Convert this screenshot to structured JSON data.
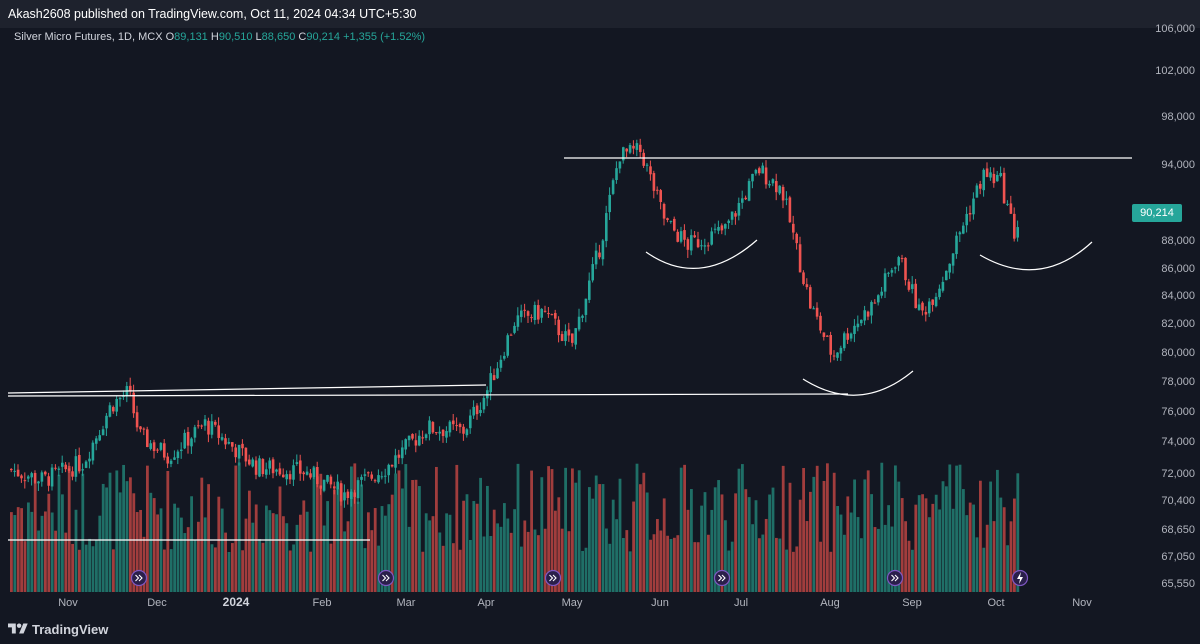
{
  "header": {
    "publisher_text": "Akash2608 published on TradingView.com, Oct 11, 2024 04:34 UTC+5:30"
  },
  "legend": {
    "symbol": "Silver Micro Futures, 1D, MCX",
    "open_label": "O",
    "open": "89,131",
    "high_label": "H",
    "high": "90,510",
    "low_label": "L",
    "low": "88,650",
    "close_label": "C",
    "close": "90,214",
    "change": "+1,355 (+1.52%)"
  },
  "price_badge": "90,214",
  "footer": {
    "brand": "TradingView"
  },
  "colors": {
    "up": "#26a69a",
    "down": "#ef5350",
    "up_volume": "#1f6f67",
    "down_volume": "#a13d3d",
    "background": "#131722",
    "drawing": "#ffffff",
    "event_marker": "#7e57c2"
  },
  "chart_data": {
    "type": "candlestick",
    "instrument": "Silver Micro Futures",
    "interval": "1D",
    "exchange": "MCX",
    "y_axis": {
      "price_ticks": [
        "106,000",
        "102,000",
        "98,000",
        "94,000",
        "88,000",
        "86,000",
        "84,000",
        "82,000",
        "80,000",
        "78,000",
        "76,000",
        "74,000",
        "72,000",
        "70,400",
        "68,650",
        "67,050",
        "65,550"
      ]
    },
    "x_axis": {
      "ticks": [
        "Nov",
        "Dec",
        "2024",
        "Feb",
        "Mar",
        "Apr",
        "May",
        "Jun",
        "Jul",
        "Aug",
        "Sep",
        "Oct",
        "Nov"
      ]
    },
    "price_range": [
      65550,
      106000
    ],
    "last_price": 90214,
    "candles_approx": [
      {
        "date": "2023-10-20",
        "o": 70800,
        "h": 72000,
        "l": 69200,
        "c": 71800
      },
      {
        "date": "2023-11-01",
        "o": 71500,
        "h": 72600,
        "l": 70200,
        "c": 71000
      },
      {
        "date": "2023-11-15",
        "o": 70500,
        "h": 72800,
        "l": 69500,
        "c": 72300
      },
      {
        "date": "2023-11-25",
        "o": 73500,
        "h": 76800,
        "l": 73000,
        "c": 76500
      },
      {
        "date": "2023-12-01",
        "o": 76800,
        "h": 78300,
        "l": 76200,
        "c": 77400
      },
      {
        "date": "2023-12-05",
        "o": 77000,
        "h": 77300,
        "l": 73800,
        "c": 74200
      },
      {
        "date": "2023-12-15",
        "o": 73800,
        "h": 75400,
        "l": 72000,
        "c": 72800
      },
      {
        "date": "2023-12-28",
        "o": 74500,
        "h": 75600,
        "l": 74000,
        "c": 75100
      },
      {
        "date": "2024-01-15",
        "o": 73000,
        "h": 73600,
        "l": 71400,
        "c": 72000
      },
      {
        "date": "2024-02-01",
        "o": 71500,
        "h": 72300,
        "l": 70600,
        "c": 71600
      },
      {
        "date": "2024-02-15",
        "o": 70600,
        "h": 71300,
        "l": 69300,
        "c": 70000
      },
      {
        "date": "2024-03-01",
        "o": 70400,
        "h": 72400,
        "l": 70000,
        "c": 72000
      },
      {
        "date": "2024-03-15",
        "o": 74200,
        "h": 75400,
        "l": 73800,
        "c": 74800
      },
      {
        "date": "2024-03-28",
        "o": 74800,
        "h": 78000,
        "l": 74200,
        "c": 74600
      },
      {
        "date": "2024-04-05",
        "o": 75200,
        "h": 77600,
        "l": 75000,
        "c": 77400
      },
      {
        "date": "2024-04-15",
        "o": 80800,
        "h": 82900,
        "l": 80200,
        "c": 82600
      },
      {
        "date": "2024-04-25",
        "o": 83500,
        "h": 86200,
        "l": 82700,
        "c": 83300
      },
      {
        "date": "2024-05-05",
        "o": 82000,
        "h": 82700,
        "l": 80400,
        "c": 80800
      },
      {
        "date": "2024-05-15",
        "o": 84200,
        "h": 88300,
        "l": 83900,
        "c": 88000
      },
      {
        "date": "2024-05-22",
        "o": 91500,
        "h": 95600,
        "l": 90700,
        "c": 94800
      },
      {
        "date": "2024-05-29",
        "o": 94500,
        "h": 96200,
        "l": 93500,
        "c": 95200
      },
      {
        "date": "2024-06-07",
        "o": 93000,
        "h": 93500,
        "l": 89300,
        "c": 89800
      },
      {
        "date": "2024-06-15",
        "o": 89500,
        "h": 90200,
        "l": 87400,
        "c": 88100
      },
      {
        "date": "2024-06-28",
        "o": 88600,
        "h": 89600,
        "l": 87900,
        "c": 89200
      },
      {
        "date": "2024-07-10",
        "o": 91500,
        "h": 94200,
        "l": 90900,
        "c": 93600
      },
      {
        "date": "2024-07-18",
        "o": 93500,
        "h": 93800,
        "l": 91800,
        "c": 92200
      },
      {
        "date": "2024-07-28",
        "o": 86500,
        "h": 87000,
        "l": 83300,
        "c": 83800
      },
      {
        "date": "2024-08-05",
        "o": 82000,
        "h": 82700,
        "l": 79200,
        "c": 80000
      },
      {
        "date": "2024-08-10",
        "o": 79800,
        "h": 82200,
        "l": 78400,
        "c": 81700
      },
      {
        "date": "2024-08-20",
        "o": 82500,
        "h": 84500,
        "l": 82000,
        "c": 84000
      },
      {
        "date": "2024-08-28",
        "o": 88300,
        "h": 89000,
        "l": 86800,
        "c": 87400
      },
      {
        "date": "2024-09-05",
        "o": 84400,
        "h": 85100,
        "l": 82600,
        "c": 83000
      },
      {
        "date": "2024-09-12",
        "o": 83000,
        "h": 85700,
        "l": 82200,
        "c": 85400
      },
      {
        "date": "2024-09-20",
        "o": 88500,
        "h": 90200,
        "l": 88000,
        "c": 89700
      },
      {
        "date": "2024-09-27",
        "o": 91700,
        "h": 93700,
        "l": 91000,
        "c": 93200
      },
      {
        "date": "2024-10-03",
        "o": 93200,
        "h": 95300,
        "l": 92400,
        "c": 92800
      },
      {
        "date": "2024-10-08",
        "o": 92600,
        "h": 92800,
        "l": 88400,
        "c": 88900
      },
      {
        "date": "2024-10-10",
        "o": 89131,
        "h": 90510,
        "l": 88650,
        "c": 90214
      }
    ],
    "annotations": [
      "horizontal resistance line near 94,500 (May–Oct)",
      "rising trendline from 77,300 (Oct 2023) to 77,600 (Mar 2024)",
      "horizontal line near 77,300 (Oct 2023–Aug 2024)",
      "three rounding-bottom arcs (Jun–Jul, Aug, Oct)"
    ]
  }
}
